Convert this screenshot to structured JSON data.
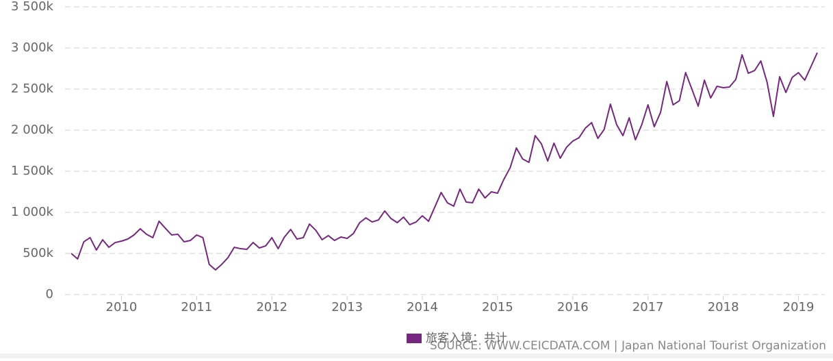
{
  "chart_data": {
    "type": "line",
    "x": [
      2009.333,
      2009.417,
      2009.5,
      2009.583,
      2009.667,
      2009.75,
      2009.833,
      2009.917,
      2010,
      2010.083,
      2010.167,
      2010.25,
      2010.333,
      2010.417,
      2010.5,
      2010.583,
      2010.667,
      2010.75,
      2010.833,
      2010.917,
      2011,
      2011.083,
      2011.167,
      2011.25,
      2011.333,
      2011.417,
      2011.5,
      2011.583,
      2011.667,
      2011.75,
      2011.833,
      2011.917,
      2012,
      2012.083,
      2012.167,
      2012.25,
      2012.333,
      2012.417,
      2012.5,
      2012.583,
      2012.667,
      2012.75,
      2012.833,
      2012.917,
      2013,
      2013.083,
      2013.167,
      2013.25,
      2013.333,
      2013.417,
      2013.5,
      2013.583,
      2013.667,
      2013.75,
      2013.833,
      2013.917,
      2014,
      2014.083,
      2014.167,
      2014.25,
      2014.333,
      2014.417,
      2014.5,
      2014.583,
      2014.667,
      2014.75,
      2014.833,
      2014.917,
      2015,
      2015.083,
      2015.167,
      2015.25,
      2015.333,
      2015.417,
      2015.5,
      2015.583,
      2015.667,
      2015.75,
      2015.833,
      2015.917,
      2016,
      2016.083,
      2016.167,
      2016.25,
      2016.333,
      2016.417,
      2016.5,
      2016.583,
      2016.667,
      2016.75,
      2016.833,
      2016.917,
      2017,
      2017.083,
      2017.167,
      2017.25,
      2017.333,
      2017.417,
      2017.5,
      2017.583,
      2017.667,
      2017.75,
      2017.833,
      2017.917,
      2018,
      2018.083,
      2018.167,
      2018.25,
      2018.333,
      2018.417,
      2018.5,
      2018.583,
      2018.667,
      2018.75,
      2018.833,
      2018.917,
      2019,
      2019.083,
      2019.167,
      2019.25
    ],
    "series": [
      {
        "name": "旅客入境：共计",
        "color": "#76267f",
        "values": [
          500,
          433,
          642,
          692,
          542,
          667,
          575,
          633,
          650,
          675,
          725,
          800,
          733,
          692,
          892,
          808,
          725,
          733,
          642,
          658,
          725,
          692,
          367,
          300,
          367,
          450,
          575,
          558,
          550,
          633,
          567,
          592,
          692,
          558,
          700,
          792,
          675,
          692,
          858,
          783,
          667,
          717,
          658,
          700,
          683,
          742,
          875,
          933,
          883,
          908,
          1017,
          925,
          875,
          942,
          850,
          883,
          958,
          892,
          1067,
          1242,
          1117,
          1075,
          1283,
          1125,
          1117,
          1283,
          1175,
          1250,
          1233,
          1400,
          1542,
          1783,
          1650,
          1608,
          1933,
          1833,
          1625,
          1842,
          1658,
          1792,
          1867,
          1908,
          2025,
          2092,
          1900,
          2008,
          2317,
          2067,
          1933,
          2150,
          1883,
          2067,
          2308,
          2042,
          2217,
          2592,
          2308,
          2358,
          2700,
          2500,
          2292,
          2608,
          2392,
          2533,
          2517,
          2525,
          2617,
          2917,
          2692,
          2725,
          2842,
          2583,
          2167,
          2650,
          2458,
          2642,
          2700,
          2608,
          2775,
          2942
        ]
      }
    ],
    "xlim": [
      2009.25,
      2019.35
    ],
    "xticks": [
      2010,
      2011,
      2012,
      2013,
      2014,
      2015,
      2016,
      2017,
      2018,
      2019
    ],
    "ylim": [
      0,
      3500
    ],
    "yticks": [
      0,
      {
        "value": 500,
        "label": "500k"
      },
      {
        "value": 1000,
        "label": "1 000k"
      },
      {
        "value": 1500,
        "label": "1 500k"
      },
      {
        "value": 2000,
        "label": "2 000k"
      },
      {
        "value": 2500,
        "label": "2 500k"
      },
      {
        "value": 3000,
        "label": "3 000k"
      },
      {
        "value": 3500,
        "label": "3 500k"
      }
    ],
    "grid": true,
    "source": "SOURCE: WWW.CEICDATA.COM | Japan National Tourist Organization"
  }
}
